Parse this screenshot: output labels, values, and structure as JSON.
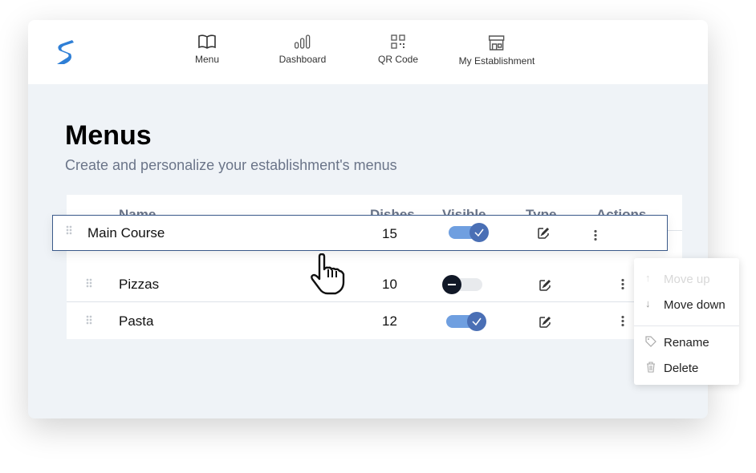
{
  "nav": {
    "items": [
      {
        "label": "Menu",
        "icon": "book-icon"
      },
      {
        "label": "Dashboard",
        "icon": "bar-chart-icon"
      },
      {
        "label": "QR Code",
        "icon": "qr-code-icon"
      },
      {
        "label": "My Establishment",
        "icon": "store-icon"
      }
    ]
  },
  "page": {
    "title": "Menus",
    "subtitle": "Create and personalize your establishment's menus"
  },
  "table": {
    "headers": {
      "name": "Name",
      "dishes": "Dishes",
      "visible": "Visible",
      "type": "Type",
      "actions": "Actions"
    },
    "rows": [
      {
        "name": "Main Course",
        "dishes": "15",
        "visible": true
      },
      {
        "name": "Pizzas",
        "dishes": "10",
        "visible": false
      },
      {
        "name": "Pasta",
        "dishes": "12",
        "visible": true
      }
    ]
  },
  "context_menu": {
    "move_up": "Move up",
    "move_down": "Move down",
    "rename": "Rename",
    "delete": "Delete"
  },
  "colors": {
    "accent": "#4a6fb5",
    "toggle_track": "#6f9fe0",
    "drag_border": "#3b5a8a"
  }
}
